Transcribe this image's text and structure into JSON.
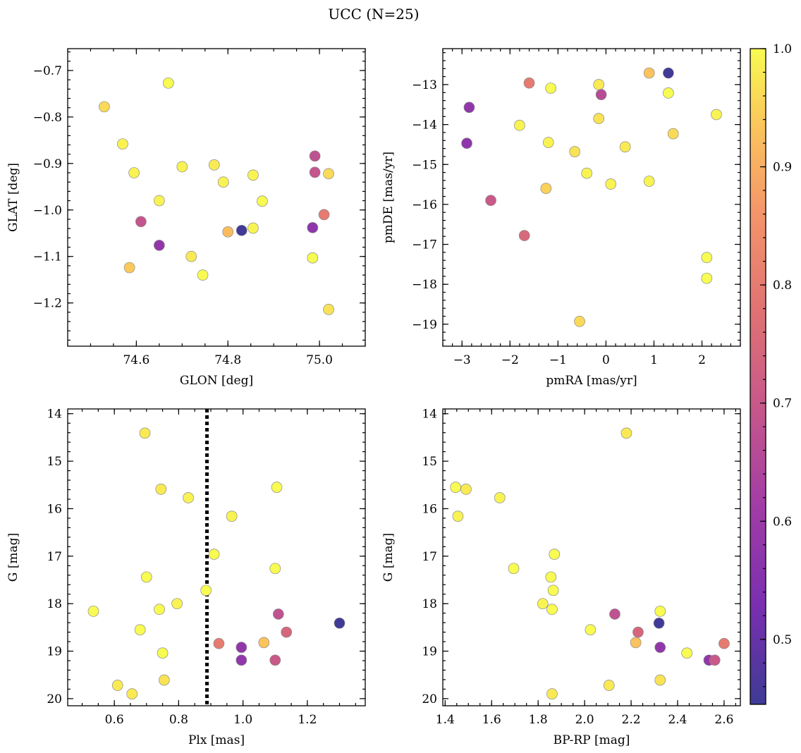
{
  "title": "UCC (N=25)",
  "colorbar": {
    "range": [
      0.445,
      1.0
    ],
    "ticks": [
      0.5,
      0.6,
      0.7,
      0.8,
      0.9,
      1.0
    ],
    "tick_labels": [
      "0.5",
      "0.6",
      "0.7",
      "0.8",
      "0.9",
      "1.0"
    ],
    "colormap": "plasma"
  },
  "chart_data": [
    {
      "type": "scatter",
      "xlabel": "GLON [deg]",
      "ylabel": "GLAT [deg]",
      "xlim": [
        74.45,
        75.1
      ],
      "ylim": [
        -1.293,
        -0.653
      ],
      "xticks": [
        74.6,
        74.8,
        75.0
      ],
      "xtick_labels": [
        "74.6",
        "74.8",
        "75.0"
      ],
      "yticks": [
        -0.7,
        -0.8,
        -0.9,
        -1.0,
        -1.1,
        -1.2
      ],
      "ytick_labels": [
        "−0.7",
        "−0.8",
        "−0.9",
        "−1.0",
        "−1.1",
        "−1.2"
      ],
      "points": [
        {
          "x": 74.53,
          "y": -0.778,
          "c": 0.96
        },
        {
          "x": 74.67,
          "y": -0.727,
          "c": 1.0
        },
        {
          "x": 74.57,
          "y": -0.858,
          "c": 0.99
        },
        {
          "x": 74.595,
          "y": -0.92,
          "c": 0.99
        },
        {
          "x": 74.7,
          "y": -0.907,
          "c": 0.99
        },
        {
          "x": 74.77,
          "y": -0.903,
          "c": 0.98
        },
        {
          "x": 74.79,
          "y": -0.94,
          "c": 0.99
        },
        {
          "x": 74.855,
          "y": -0.925,
          "c": 0.99
        },
        {
          "x": 74.65,
          "y": -0.98,
          "c": 0.99
        },
        {
          "x": 74.875,
          "y": -0.981,
          "c": 1.0
        },
        {
          "x": 74.61,
          "y": -1.025,
          "c": 0.69
        },
        {
          "x": 74.8,
          "y": -1.047,
          "c": 0.92
        },
        {
          "x": 74.83,
          "y": -1.044,
          "c": 0.45
        },
        {
          "x": 74.855,
          "y": -1.039,
          "c": 0.99
        },
        {
          "x": 74.65,
          "y": -1.076,
          "c": 0.58
        },
        {
          "x": 74.72,
          "y": -1.1,
          "c": 0.98
        },
        {
          "x": 74.745,
          "y": -1.14,
          "c": 1.0
        },
        {
          "x": 74.585,
          "y": -1.124,
          "c": 0.94
        },
        {
          "x": 74.99,
          "y": -0.884,
          "c": 0.68
        },
        {
          "x": 74.99,
          "y": -0.919,
          "c": 0.69
        },
        {
          "x": 75.02,
          "y": -0.922,
          "c": 0.96
        },
        {
          "x": 75.01,
          "y": -1.01,
          "c": 0.8
        },
        {
          "x": 74.985,
          "y": -1.038,
          "c": 0.57
        },
        {
          "x": 74.985,
          "y": -1.103,
          "c": 1.0
        },
        {
          "x": 75.02,
          "y": -1.214,
          "c": 0.97
        }
      ]
    },
    {
      "type": "scatter",
      "xlabel": "pmRA [mas/yr]",
      "ylabel": "pmDE [mas/yr]",
      "xlim": [
        -3.4,
        2.8
      ],
      "ylim": [
        -19.55,
        -12.1
      ],
      "xticks": [
        -3,
        -2,
        -1,
        0,
        1,
        2
      ],
      "xtick_labels": [
        "−3",
        "−2",
        "−1",
        "0",
        "1",
        "2"
      ],
      "yticks": [
        -13,
        -14,
        -15,
        -16,
        -17,
        -18,
        -19
      ],
      "ytick_labels": [
        "−13",
        "−14",
        "−15",
        "−16",
        "−17",
        "−18",
        "−19"
      ],
      "points": [
        {
          "x": -2.9,
          "y": -14.47,
          "c": 0.57
        },
        {
          "x": -2.85,
          "y": -13.57,
          "c": 0.58
        },
        {
          "x": -2.4,
          "y": -15.9,
          "c": 0.7
        },
        {
          "x": -1.8,
          "y": -14.02,
          "c": 0.99
        },
        {
          "x": -1.7,
          "y": -16.78,
          "c": 0.75
        },
        {
          "x": -1.6,
          "y": -12.96,
          "c": 0.8
        },
        {
          "x": -1.15,
          "y": -13.09,
          "c": 1.0
        },
        {
          "x": -1.2,
          "y": -14.45,
          "c": 0.99
        },
        {
          "x": -1.25,
          "y": -15.6,
          "c": 0.95
        },
        {
          "x": -0.65,
          "y": -14.68,
          "c": 0.97
        },
        {
          "x": -0.4,
          "y": -15.22,
          "c": 0.99
        },
        {
          "x": -0.15,
          "y": -13.0,
          "c": 0.98
        },
        {
          "x": -0.1,
          "y": -13.25,
          "c": 0.66
        },
        {
          "x": -0.15,
          "y": -13.85,
          "c": 0.97
        },
        {
          "x": 0.1,
          "y": -15.49,
          "c": 0.99
        },
        {
          "x": 0.4,
          "y": -14.56,
          "c": 0.98
        },
        {
          "x": -0.55,
          "y": -18.93,
          "c": 0.96
        },
        {
          "x": 0.9,
          "y": -12.71,
          "c": 0.93
        },
        {
          "x": 1.3,
          "y": -12.71,
          "c": 0.45
        },
        {
          "x": 1.3,
          "y": -13.21,
          "c": 1.0
        },
        {
          "x": 1.4,
          "y": -14.23,
          "c": 0.96
        },
        {
          "x": 0.9,
          "y": -15.42,
          "c": 0.99
        },
        {
          "x": 2.3,
          "y": -13.75,
          "c": 0.99
        },
        {
          "x": 2.1,
          "y": -17.33,
          "c": 1.0
        },
        {
          "x": 2.1,
          "y": -17.85,
          "c": 1.0
        }
      ]
    },
    {
      "type": "scatter",
      "xlabel": "Plx [mas]",
      "ylabel": "G [mag]",
      "xlim": [
        0.455,
        1.38
      ],
      "ylim": [
        20.15,
        13.9
      ],
      "y_inverted": true,
      "xticks": [
        0.6,
        0.8,
        1.0,
        1.2
      ],
      "xtick_labels": [
        "0.6",
        "0.8",
        "1.0",
        "1.2"
      ],
      "yticks": [
        14,
        15,
        16,
        17,
        18,
        19,
        20
      ],
      "ytick_labels": [
        "14",
        "15",
        "16",
        "17",
        "18",
        "19",
        "20"
      ],
      "vline": {
        "x": 0.888,
        "style": "dotted"
      },
      "points": [
        {
          "x": 0.695,
          "y": 14.41,
          "c": 0.98
        },
        {
          "x": 0.745,
          "y": 15.59,
          "c": 0.98
        },
        {
          "x": 0.83,
          "y": 15.77,
          "c": 0.99
        },
        {
          "x": 1.105,
          "y": 15.55,
          "c": 1.0
        },
        {
          "x": 0.965,
          "y": 16.16,
          "c": 0.99
        },
        {
          "x": 0.91,
          "y": 16.96,
          "c": 1.0
        },
        {
          "x": 1.1,
          "y": 17.26,
          "c": 1.0
        },
        {
          "x": 0.7,
          "y": 17.44,
          "c": 1.0
        },
        {
          "x": 0.885,
          "y": 17.72,
          "c": 1.0
        },
        {
          "x": 0.535,
          "y": 18.16,
          "c": 1.0
        },
        {
          "x": 0.74,
          "y": 18.12,
          "c": 1.0
        },
        {
          "x": 0.795,
          "y": 18.0,
          "c": 0.99
        },
        {
          "x": 0.68,
          "y": 18.55,
          "c": 1.0
        },
        {
          "x": 1.11,
          "y": 18.22,
          "c": 0.68
        },
        {
          "x": 1.135,
          "y": 18.6,
          "c": 0.74
        },
        {
          "x": 1.3,
          "y": 18.41,
          "c": 0.45
        },
        {
          "x": 0.925,
          "y": 18.84,
          "c": 0.8
        },
        {
          "x": 0.995,
          "y": 18.92,
          "c": 0.58
        },
        {
          "x": 1.065,
          "y": 18.82,
          "c": 0.93
        },
        {
          "x": 0.75,
          "y": 19.04,
          "c": 1.0
        },
        {
          "x": 0.995,
          "y": 19.19,
          "c": 0.58
        },
        {
          "x": 1.1,
          "y": 19.19,
          "c": 0.7
        },
        {
          "x": 0.755,
          "y": 19.61,
          "c": 0.97
        },
        {
          "x": 0.61,
          "y": 19.72,
          "c": 0.98
        },
        {
          "x": 0.655,
          "y": 19.9,
          "c": 0.98
        }
      ]
    },
    {
      "type": "scatter",
      "xlabel": "BP-RP [mag]",
      "ylabel": "G [mag]",
      "xlim": [
        1.39,
        2.67
      ],
      "ylim": [
        20.15,
        13.9
      ],
      "y_inverted": true,
      "xticks": [
        1.4,
        1.6,
        1.8,
        2.0,
        2.2,
        2.4,
        2.6
      ],
      "xtick_labels": [
        "1.4",
        "1.6",
        "1.8",
        "2.0",
        "2.2",
        "2.4",
        "2.6"
      ],
      "yticks": [
        14,
        15,
        16,
        17,
        18,
        19,
        20
      ],
      "ytick_labels": [
        "14",
        "15",
        "16",
        "17",
        "18",
        "19",
        "20"
      ],
      "points": [
        {
          "x": 2.18,
          "y": 14.41,
          "c": 0.98
        },
        {
          "x": 1.445,
          "y": 15.55,
          "c": 1.0
        },
        {
          "x": 1.49,
          "y": 15.59,
          "c": 0.98
        },
        {
          "x": 1.635,
          "y": 15.77,
          "c": 0.99
        },
        {
          "x": 1.455,
          "y": 16.16,
          "c": 0.99
        },
        {
          "x": 1.87,
          "y": 16.96,
          "c": 1.0
        },
        {
          "x": 1.695,
          "y": 17.26,
          "c": 1.0
        },
        {
          "x": 1.855,
          "y": 17.44,
          "c": 1.0
        },
        {
          "x": 1.865,
          "y": 17.72,
          "c": 1.0
        },
        {
          "x": 1.82,
          "y": 18.0,
          "c": 0.99
        },
        {
          "x": 1.86,
          "y": 18.12,
          "c": 1.0
        },
        {
          "x": 2.325,
          "y": 18.16,
          "c": 1.0
        },
        {
          "x": 2.13,
          "y": 18.22,
          "c": 0.68
        },
        {
          "x": 2.32,
          "y": 18.41,
          "c": 0.45
        },
        {
          "x": 2.025,
          "y": 18.55,
          "c": 1.0
        },
        {
          "x": 2.23,
          "y": 18.6,
          "c": 0.74
        },
        {
          "x": 2.22,
          "y": 18.82,
          "c": 0.93
        },
        {
          "x": 2.6,
          "y": 18.84,
          "c": 0.8
        },
        {
          "x": 2.325,
          "y": 18.92,
          "c": 0.58
        },
        {
          "x": 2.44,
          "y": 19.04,
          "c": 1.0
        },
        {
          "x": 2.535,
          "y": 19.19,
          "c": 0.58
        },
        {
          "x": 2.56,
          "y": 19.19,
          "c": 0.7
        },
        {
          "x": 2.325,
          "y": 19.61,
          "c": 0.97
        },
        {
          "x": 2.105,
          "y": 19.72,
          "c": 0.98
        },
        {
          "x": 1.86,
          "y": 19.9,
          "c": 0.98
        }
      ]
    }
  ]
}
